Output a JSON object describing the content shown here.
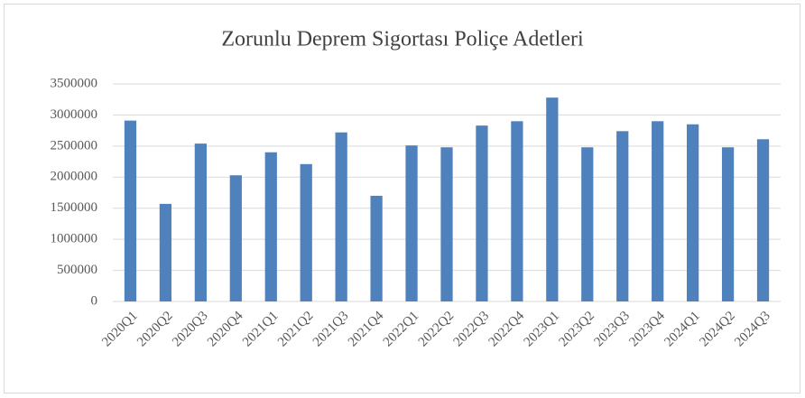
{
  "chart_data": {
    "type": "bar",
    "title": "Zorunlu Deprem Sigortası Poliçe Adetleri",
    "categories": [
      "2020Q1",
      "2020Q2",
      "2020Q3",
      "2020Q4",
      "2021Q1",
      "2021Q2",
      "2021Q3",
      "2021Q4",
      "2022Q1",
      "2022Q2",
      "2022Q3",
      "2022Q4",
      "2023Q1",
      "2023Q2",
      "2023Q3",
      "2023Q4",
      "2024Q1",
      "2024Q2",
      "2024Q3"
    ],
    "values": [
      2910000,
      1570000,
      2540000,
      2030000,
      2400000,
      2210000,
      2720000,
      1700000,
      2510000,
      2480000,
      2830000,
      2900000,
      3280000,
      2480000,
      2740000,
      2900000,
      2850000,
      2480000,
      2610000
    ],
    "color": "#4f81bd",
    "ylim": [
      0,
      3500000
    ],
    "yticks": [
      0,
      500000,
      1000000,
      1500000,
      2000000,
      2500000,
      3000000,
      3500000
    ],
    "grid": true
  }
}
